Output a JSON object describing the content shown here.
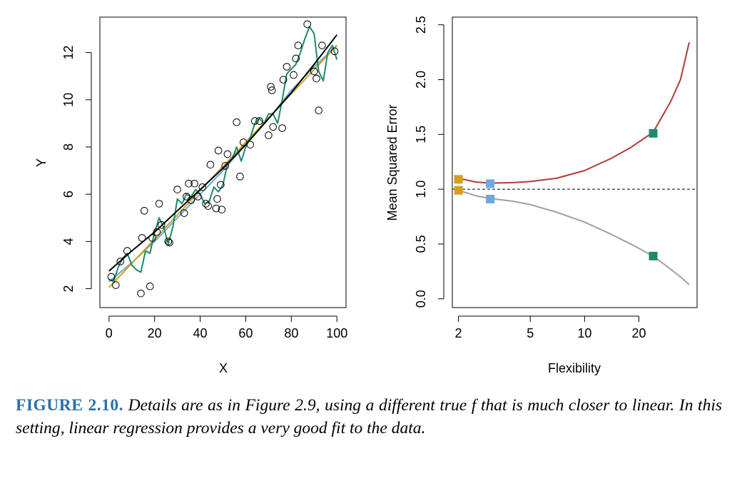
{
  "figure": {
    "caption": {
      "label": "FIGURE 2.10.",
      "text": "Details are as in Figure 2.9, using a different true f that is much closer to linear. In this setting, linear regression provides a very good fit to the data."
    }
  },
  "colors": {
    "true_f": "#000000",
    "linear_fit": "#d4a017",
    "smooth_fit": "#6fa8dc",
    "flexible_fit": "#1b8a6b",
    "test_mse": "#b03a3a",
    "train_mse": "#a0a0a0",
    "reference_line": "#000000"
  },
  "chart_data": [
    {
      "type": "scatter",
      "xlabel": "X",
      "ylabel": "Y",
      "xlim": [
        -4,
        104
      ],
      "ylim": [
        1.2,
        13.5
      ],
      "xticks": [
        0,
        20,
        40,
        60,
        80,
        100
      ],
      "yticks": [
        2,
        4,
        6,
        8,
        10,
        12
      ],
      "grid": false,
      "points": [
        [
          1,
          2.5
        ],
        [
          3,
          2.15
        ],
        [
          5,
          3.15
        ],
        [
          8,
          3.6
        ],
        [
          14,
          1.8
        ],
        [
          14.5,
          4.15
        ],
        [
          15.5,
          5.3
        ],
        [
          18,
          2.1
        ],
        [
          19,
          4.15
        ],
        [
          21,
          4.4
        ],
        [
          22,
          5.6
        ],
        [
          23,
          4.7
        ],
        [
          26,
          4.0
        ],
        [
          26.5,
          3.95
        ],
        [
          30,
          6.2
        ],
        [
          33,
          5.2
        ],
        [
          34,
          5.9
        ],
        [
          35,
          6.45
        ],
        [
          36,
          5.75
        ],
        [
          37.5,
          6.45
        ],
        [
          39,
          5.9
        ],
        [
          41,
          6.3
        ],
        [
          42.5,
          5.6
        ],
        [
          43.5,
          5.5
        ],
        [
          44.5,
          7.25
        ],
        [
          47,
          5.4
        ],
        [
          47.5,
          5.8
        ],
        [
          48,
          7.85
        ],
        [
          49,
          6.4
        ],
        [
          49.5,
          5.35
        ],
        [
          51,
          7.2
        ],
        [
          52,
          7.7
        ],
        [
          56,
          9.05
        ],
        [
          57.5,
          6.75
        ],
        [
          59,
          8.2
        ],
        [
          62,
          8.1
        ],
        [
          64,
          9.1
        ],
        [
          66,
          9.1
        ],
        [
          70,
          8.5
        ],
        [
          71,
          10.55
        ],
        [
          71.5,
          10.4
        ],
        [
          72,
          8.85
        ],
        [
          76,
          8.8
        ],
        [
          76.5,
          10.85
        ],
        [
          78,
          11.4
        ],
        [
          81,
          11.05
        ],
        [
          82,
          11.75
        ],
        [
          83,
          12.3
        ],
        [
          87,
          13.2
        ],
        [
          90,
          11.2
        ],
        [
          91,
          10.9
        ],
        [
          92,
          9.55
        ],
        [
          93.5,
          12.3
        ],
        [
          99,
          12.05
        ]
      ],
      "series": [
        {
          "x": [
            0,
            10,
            20,
            30,
            40,
            50,
            60,
            70,
            80,
            90,
            100
          ],
          "y": [
            2.75,
            3.6,
            4.4,
            5.3,
            6.2,
            7.1,
            8.1,
            9.2,
            10.3,
            11.5,
            12.75
          ]
        },
        {
          "x": [
            0,
            100
          ],
          "y": [
            2.05,
            12.3
          ]
        },
        {
          "x": [
            0,
            10,
            20,
            30,
            40,
            50,
            60,
            70,
            80,
            90,
            100
          ],
          "y": [
            2.3,
            3.1,
            4.0,
            5.0,
            6.0,
            7.0,
            8.1,
            9.2,
            10.4,
            11.4,
            12.3
          ]
        },
        {
          "x": [
            0,
            2,
            4,
            6,
            8,
            10,
            12,
            14,
            16,
            18,
            20,
            22,
            24,
            26,
            28,
            30,
            32,
            34,
            36,
            38,
            40,
            42,
            44,
            46,
            48,
            50,
            52,
            54,
            56,
            58,
            60,
            62,
            64,
            66,
            68,
            70,
            72,
            74,
            76,
            78,
            80,
            82,
            84,
            86,
            88,
            90,
            92,
            94,
            96,
            98,
            100
          ],
          "y": [
            2.4,
            2.3,
            2.9,
            3.3,
            3.5,
            3.0,
            2.8,
            2.7,
            3.6,
            3.5,
            4.4,
            5.0,
            4.6,
            3.9,
            4.6,
            5.8,
            5.6,
            6.0,
            5.9,
            6.2,
            6.0,
            5.6,
            5.7,
            6.3,
            6.1,
            6.4,
            7.3,
            7.5,
            8.0,
            7.4,
            8.0,
            8.4,
            9.0,
            9.2,
            9.0,
            9.4,
            9.4,
            9.0,
            10.0,
            11.1,
            11.3,
            11.5,
            12.0,
            12.6,
            13.1,
            12.8,
            11.2,
            10.8,
            12.0,
            12.3,
            11.7
          ]
        }
      ]
    },
    {
      "type": "line",
      "xlabel": "Flexibility",
      "ylabel": "Mean Squared Error",
      "xscale": "log",
      "xlim": [
        1.85,
        42
      ],
      "ylim": [
        -0.08,
        2.57
      ],
      "xticks": [
        2,
        5,
        10,
        20
      ],
      "yticks": [
        0.0,
        0.5,
        1.0,
        1.5,
        2.0,
        2.5
      ],
      "reference_line": 1.0,
      "series": [
        {
          "x": [
            2,
            2.5,
            3,
            4,
            5,
            7,
            10,
            14,
            18,
            24,
            30,
            34,
            38
          ],
          "y": [
            1.1,
            1.065,
            1.055,
            1.06,
            1.07,
            1.1,
            1.17,
            1.28,
            1.38,
            1.52,
            1.8,
            2.0,
            2.34
          ]
        },
        {
          "x": [
            2,
            2.5,
            3,
            4,
            5,
            7,
            10,
            14,
            18,
            24,
            30,
            34,
            38
          ],
          "y": [
            0.99,
            0.94,
            0.915,
            0.89,
            0.86,
            0.79,
            0.7,
            0.59,
            0.5,
            0.39,
            0.27,
            0.2,
            0.13
          ]
        }
      ],
      "markers": [
        {
          "x": 2,
          "y": 1.09,
          "color": "#d4a017"
        },
        {
          "x": 2,
          "y": 0.99,
          "color": "#d4a017"
        },
        {
          "x": 3,
          "y": 1.05,
          "color": "#6fa8dc"
        },
        {
          "x": 3,
          "y": 0.91,
          "color": "#6fa8dc"
        },
        {
          "x": 24,
          "y": 1.51,
          "color": "#1b8a6b"
        },
        {
          "x": 24,
          "y": 0.39,
          "color": "#1b8a6b"
        }
      ]
    }
  ]
}
